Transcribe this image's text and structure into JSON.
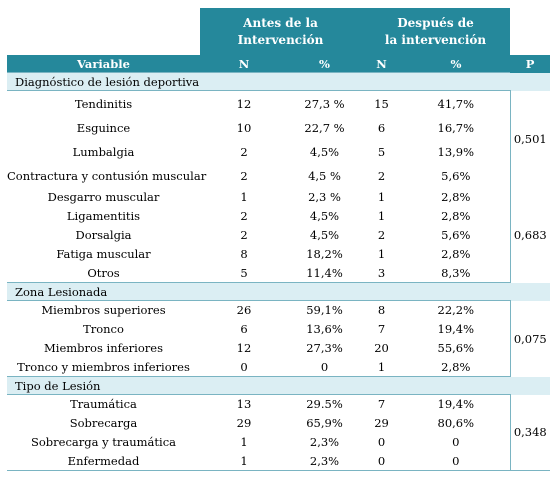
{
  "header": {
    "group_before": [
      "Antes de la",
      "Intervención"
    ],
    "group_after": [
      "Después de",
      "la intervención"
    ],
    "columns": [
      "Variable",
      "N",
      "%",
      "N",
      "%",
      "P"
    ]
  },
  "sections": [
    {
      "title": "Diagnóstico de lesión deportiva",
      "groups": [
        {
          "p": "0,501",
          "rows": [
            {
              "label": "Tendinitis",
              "n1": "12",
              "p1": "27,3 %",
              "n2": "15",
              "p2": "41,7%",
              "h": 26
            },
            {
              "label": "Esguince",
              "n1": "10",
              "p1": "22,7 %",
              "n2": "6",
              "p2": "16,7%",
              "h": 23
            },
            {
              "label": "Lumbalgia",
              "n1": "2",
              "p1": "4,5%",
              "n2": "5",
              "p2": "13,9%",
              "h": 24
            },
            {
              "label": "Contractura y contusión muscular",
              "n1": "2",
              "p1": "4,5 %",
              "n2": "2",
              "p2": "5,6%",
              "h": 24
            }
          ]
        },
        {
          "p": "0,683",
          "rows": [
            {
              "label": "Desgarro muscular",
              "n1": "1",
              "p1": "2,3 %",
              "n2": "1",
              "p2": "2,8%",
              "h": 19
            },
            {
              "label": "Ligamentitis",
              "n1": "2",
              "p1": "4,5%",
              "n2": "1",
              "p2": "2,8%",
              "h": 19
            },
            {
              "label": "Dorsalgia",
              "n1": "2",
              "p1": "4,5%",
              "n2": "2",
              "p2": "5,6%",
              "h": 19
            },
            {
              "label": "Fatiga muscular",
              "n1": "8",
              "p1": "18,2%",
              "n2": "1",
              "p2": "2,8%",
              "h": 19
            },
            {
              "label": "Otros",
              "n1": "5",
              "p1": "11,4%",
              "n2": "3",
              "p2": "8,3%",
              "h": 19
            }
          ]
        }
      ]
    },
    {
      "title": "Zona Lesionada",
      "groups": [
        {
          "p": "0,075",
          "rows": [
            {
              "label": "Miembros superiores",
              "n1": "26",
              "p1": "59,1%",
              "n2": "8",
              "p2": "22,2%",
              "h": 19
            },
            {
              "label": "Tronco",
              "n1": "6",
              "p1": "13,6%",
              "n2": "7",
              "p2": "19,4%",
              "h": 19
            },
            {
              "label": "Miembros inferiores",
              "n1": "12",
              "p1": "27,3%",
              "n2": "20",
              "p2": "55,6%",
              "h": 19
            },
            {
              "label": "Tronco y miembros inferiores",
              "n1": "0",
              "p1": "0",
              "n2": "1",
              "p2": "2,8%",
              "h": 19
            }
          ]
        }
      ]
    },
    {
      "title": "Tipo de Lesión",
      "groups": [
        {
          "p": "0,348",
          "rows": [
            {
              "label": "Traumática",
              "n1": "13",
              "p1": "29.5%",
              "n2": "7",
              "p2": "19,4%",
              "h": 19
            },
            {
              "label": "Sobrecarga",
              "n1": "29",
              "p1": "65,9%",
              "n2": "29",
              "p2": "80,6%",
              "h": 19
            },
            {
              "label": "Sobrecarga y traumática",
              "n1": "1",
              "p1": "2,3%",
              "n2": "0",
              "p2": "0",
              "h": 19
            },
            {
              "label": "Enfermedad",
              "n1": "1",
              "p1": "2,3%",
              "n2": "0",
              "p2": "0",
              "h": 19
            }
          ]
        }
      ]
    }
  ]
}
